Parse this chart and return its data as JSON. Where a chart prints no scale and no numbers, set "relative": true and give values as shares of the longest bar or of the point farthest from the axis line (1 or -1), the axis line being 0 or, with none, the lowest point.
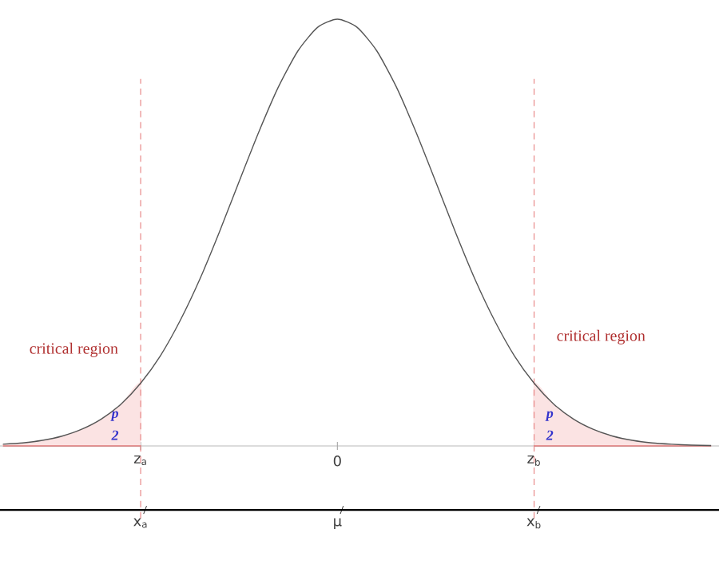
{
  "chart_data": {
    "type": "line",
    "relative": true,
    "categories": [
      null,
      null,
      null,
      null,
      null,
      null,
      null,
      "z$_{a}$",
      null,
      null,
      null,
      null,
      null,
      null,
      null,
      null,
      null,
      "0",
      null,
      null,
      null,
      null,
      null,
      null,
      null,
      null,
      null,
      "z$_{b}$",
      null,
      null,
      null,
      null,
      null,
      null,
      null,
      null,
      null
    ],
    "series": [
      {
        "color": "#555555",
        "values": [
          0.004,
          0.007,
          0.013,
          0.023,
          0.039,
          0.063,
          0.098,
          0.147,
          0.211,
          0.293,
          0.39,
          0.501,
          0.619,
          0.735,
          0.841,
          0.926,
          0.981,
          1,
          0.981,
          0.926,
          0.841,
          0.735,
          0.619,
          0.501,
          0.39,
          0.293,
          0.211,
          0.147,
          0.098,
          0.063,
          0.039,
          0.023,
          0.013,
          0.007,
          0.004,
          0.002,
          0.001
        ]
      },
      {
        "type": "area",
        "color": "#fbe3e3",
        "values": [
          0.004,
          0.007,
          0.013,
          0.023,
          0.039,
          0.063,
          0.098,
          0.147,
          null,
          null,
          null,
          null,
          null,
          null,
          null,
          null,
          null,
          null,
          null,
          null,
          null,
          null,
          null,
          null,
          null,
          null,
          null,
          null,
          null,
          null,
          null,
          null,
          null,
          null,
          null,
          null,
          null
        ]
      },
      {
        "type": "area",
        "color": "#fbe3e3",
        "values": [
          null,
          null,
          null,
          null,
          null,
          null,
          null,
          null,
          null,
          null,
          null,
          null,
          null,
          null,
          null,
          null,
          null,
          null,
          null,
          null,
          null,
          null,
          null,
          null,
          null,
          null,
          null,
          0.147,
          0.098,
          0.063,
          0.039,
          0.023,
          0.013,
          0.007,
          0.004,
          0.002,
          0.001
        ]
      }
    ],
    "ref_lines": [
      {
        "axis": "x",
        "value": "z$_{a}$",
        "color": "#e88a8a",
        "line_style": "dashed"
      },
      {
        "axis": "x",
        "value": "z$_{b}$",
        "color": "#e88a8a",
        "line_style": "dashed"
      }
    ],
    "annotations": [
      "critical region",
      "critical region",
      "p",
      "2",
      "p",
      "2",
      "x$_{a}$",
      "μ",
      "x$_{b}$"
    ],
    "marker": "none",
    "line_style": "solid"
  }
}
